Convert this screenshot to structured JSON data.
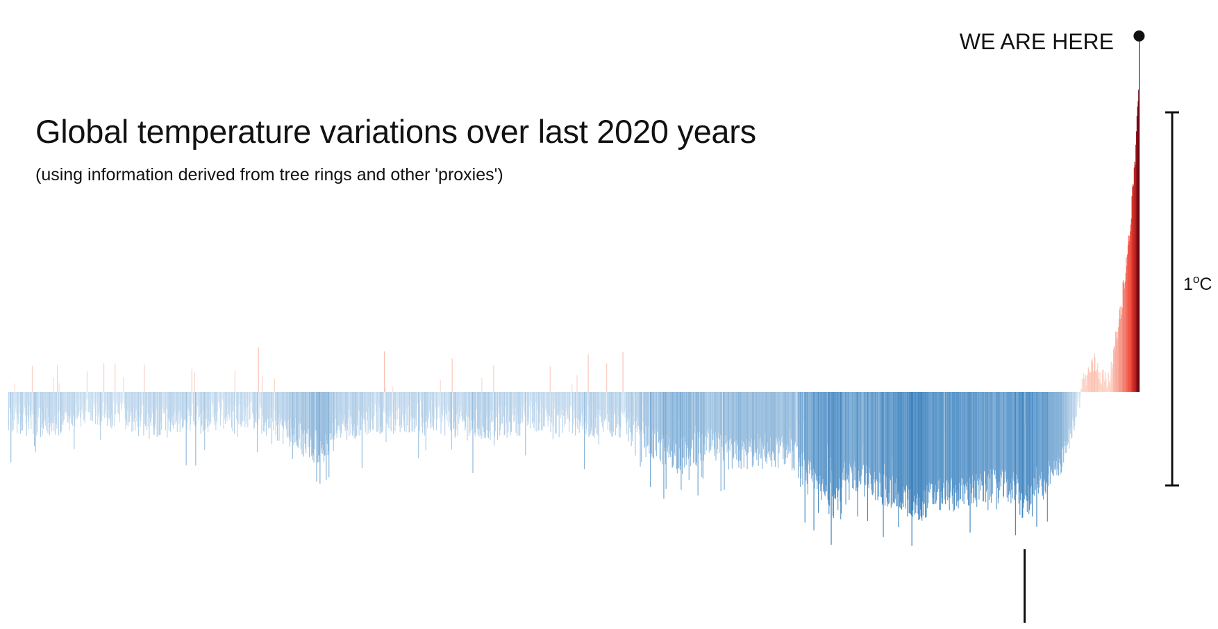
{
  "chart_data": {
    "type": "bar",
    "title": "Global temperature variations over last 2020 years",
    "subtitle": "(using information derived from tree rings and other 'proxies')",
    "xlabel": "",
    "ylabel": "",
    "x_range": [
      1,
      2020
    ],
    "ylim": [
      -1.2,
      1.9
    ],
    "grid": false,
    "legend": "none",
    "baseline_value": 0,
    "scale_bar": {
      "value_degC": 1,
      "label": "1",
      "unit": "C"
    },
    "annotation": {
      "text": "WE ARE HERE",
      "year": 2020,
      "value": 1.85
    },
    "marker_line": {
      "year": 1816,
      "y_from": -0.52,
      "y_to": -0.77
    },
    "colors": {
      "cold_dark": "#2171b5",
      "cold_light": "#deebf7",
      "warm_light": "#fee0d2",
      "warm_dark": "#67000d",
      "text": "#111111"
    },
    "series": [
      {
        "name": "",
        "keypoints_year": [
          1,
          50,
          100,
          150,
          200,
          250,
          300,
          350,
          400,
          450,
          500,
          540,
          560,
          600,
          650,
          700,
          750,
          800,
          850,
          900,
          950,
          1000,
          1050,
          1100,
          1150,
          1200,
          1250,
          1300,
          1350,
          1400,
          1450,
          1475,
          1500,
          1550,
          1600,
          1625,
          1650,
          1700,
          1750,
          1800,
          1810,
          1820,
          1850,
          1880,
          1900,
          1920,
          1940,
          1960,
          1970,
          1980,
          1990,
          2000,
          2010,
          2015,
          2020
        ],
        "keypoints_value": [
          -0.12,
          -0.16,
          -0.14,
          -0.1,
          -0.12,
          -0.15,
          -0.16,
          -0.13,
          -0.1,
          -0.13,
          -0.2,
          -0.28,
          -0.3,
          -0.17,
          -0.14,
          -0.13,
          -0.12,
          -0.16,
          -0.18,
          -0.15,
          -0.12,
          -0.14,
          -0.16,
          -0.17,
          -0.28,
          -0.33,
          -0.28,
          -0.34,
          -0.3,
          -0.33,
          -0.52,
          -0.58,
          -0.42,
          -0.5,
          -0.56,
          -0.62,
          -0.55,
          -0.54,
          -0.5,
          -0.5,
          -0.6,
          -0.58,
          -0.48,
          -0.38,
          -0.2,
          0.05,
          0.15,
          0.05,
          0.1,
          0.3,
          0.5,
          0.75,
          1.1,
          1.35,
          1.7
        ]
      }
    ]
  }
}
